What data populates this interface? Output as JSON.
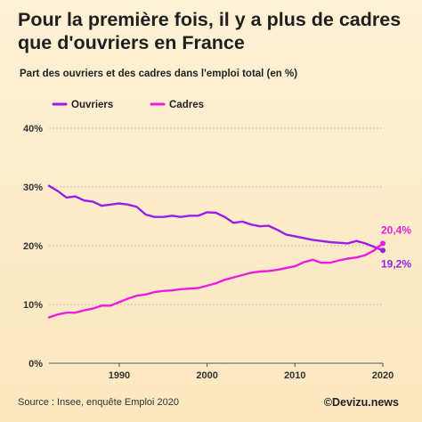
{
  "header": {
    "title": "Pour la première fois, il y a plus de cadres que d'ouvriers en France",
    "subtitle": "Part des ouvriers et des cadres dans l'emploi total (en %)"
  },
  "footer": {
    "source": "Source : Insee, enquête Emploi 2020",
    "credit": "©Devizu.news"
  },
  "chart_data": {
    "type": "line",
    "xlim": [
      1982,
      2020
    ],
    "ylim": [
      0,
      40
    ],
    "y_ticks": [
      "0%",
      "10%",
      "20%",
      "30%",
      "40%"
    ],
    "y_tick_values": [
      0,
      10,
      20,
      30,
      40
    ],
    "x_ticks": [
      "1990",
      "2000",
      "2010",
      "2020"
    ],
    "x_tick_values": [
      1990,
      2000,
      2010,
      2020
    ],
    "grid": "horizontal",
    "legend_position": "top-left",
    "series": [
      {
        "name": "Ouvriers",
        "color": "#9b1ee8",
        "end_label": "19,2%",
        "x": [
          1982,
          1983,
          1984,
          1985,
          1986,
          1987,
          1988,
          1989,
          1990,
          1991,
          1992,
          1993,
          1994,
          1995,
          1996,
          1997,
          1998,
          1999,
          2000,
          2001,
          2002,
          2003,
          2004,
          2005,
          2006,
          2007,
          2008,
          2009,
          2010,
          2011,
          2012,
          2013,
          2014,
          2015,
          2016,
          2017,
          2018,
          2019,
          2020
        ],
        "values": [
          30.2,
          29.3,
          28.2,
          28.4,
          27.7,
          27.5,
          26.8,
          27.0,
          27.2,
          27.0,
          26.6,
          25.3,
          24.9,
          24.9,
          25.1,
          24.9,
          25.1,
          25.1,
          25.7,
          25.6,
          24.9,
          23.9,
          24.1,
          23.6,
          23.3,
          23.4,
          22.7,
          21.9,
          21.6,
          21.3,
          21.0,
          20.8,
          20.6,
          20.5,
          20.4,
          20.8,
          20.4,
          19.8,
          19.2
        ]
      },
      {
        "name": "Cadres",
        "color": "#f01cde",
        "end_label": "20,4%",
        "x": [
          1982,
          1983,
          1984,
          1985,
          1986,
          1987,
          1988,
          1989,
          1990,
          1991,
          1992,
          1993,
          1994,
          1995,
          1996,
          1997,
          1998,
          1999,
          2000,
          2001,
          2002,
          2003,
          2004,
          2005,
          2006,
          2007,
          2008,
          2009,
          2010,
          2011,
          2012,
          2013,
          2014,
          2015,
          2016,
          2017,
          2018,
          2019,
          2020
        ],
        "values": [
          7.8,
          8.3,
          8.6,
          8.6,
          9.0,
          9.3,
          9.8,
          9.8,
          10.4,
          11.0,
          11.5,
          11.7,
          12.1,
          12.3,
          12.4,
          12.6,
          12.7,
          12.8,
          13.2,
          13.6,
          14.2,
          14.6,
          15.0,
          15.4,
          15.6,
          15.7,
          15.9,
          16.2,
          16.5,
          17.2,
          17.6,
          17.1,
          17.1,
          17.5,
          17.8,
          18.0,
          18.4,
          19.2,
          20.4
        ]
      }
    ]
  }
}
